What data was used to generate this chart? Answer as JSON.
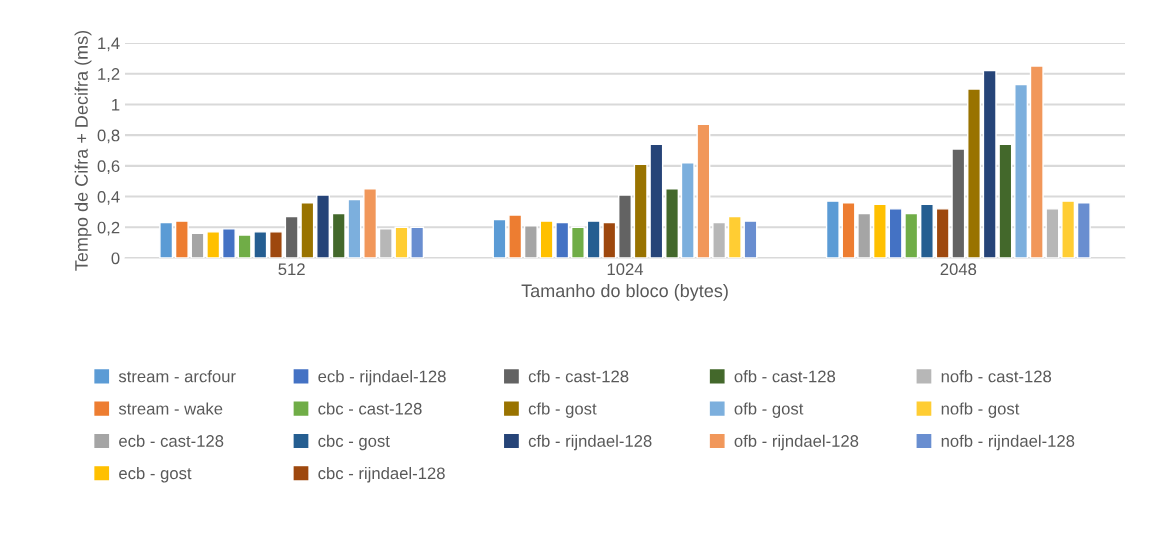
{
  "chart_data": {
    "type": "bar",
    "xlabel": "Tamanho do bloco (bytes)",
    "ylabel": "Tempo de Cifra + Decifra (ms)",
    "categories": [
      "512",
      "1024",
      "2048"
    ],
    "series": [
      {
        "name": "stream - arcfour",
        "color": "#5b9bd5",
        "values": [
          0.23,
          0.25,
          0.37
        ]
      },
      {
        "name": "stream - wake",
        "color": "#ed7d31",
        "values": [
          0.24,
          0.28,
          0.36
        ]
      },
      {
        "name": "ecb - cast-128",
        "color": "#a5a5a5",
        "values": [
          0.16,
          0.21,
          0.29
        ]
      },
      {
        "name": "ecb - gost",
        "color": "#ffc000",
        "values": [
          0.17,
          0.24,
          0.35
        ]
      },
      {
        "name": "ecb - rijndael-128",
        "color": "#4472c4",
        "values": [
          0.19,
          0.23,
          0.32
        ]
      },
      {
        "name": "cbc - cast-128",
        "color": "#70ad47",
        "values": [
          0.15,
          0.2,
          0.29
        ]
      },
      {
        "name": "cbc - gost",
        "color": "#255e91",
        "values": [
          0.17,
          0.24,
          0.35
        ]
      },
      {
        "name": "cbc - rijndael-128",
        "color": "#9e480e",
        "values": [
          0.17,
          0.23,
          0.32
        ]
      },
      {
        "name": "cfb - cast-128",
        "color": "#636363",
        "values": [
          0.27,
          0.41,
          0.71
        ]
      },
      {
        "name": "cfb - gost",
        "color": "#997300",
        "values": [
          0.36,
          0.61,
          1.1
        ]
      },
      {
        "name": "cfb - rijndael-128",
        "color": "#264478",
        "values": [
          0.41,
          0.74,
          1.22
        ]
      },
      {
        "name": "ofb - cast-128",
        "color": "#43682b",
        "values": [
          0.29,
          0.45,
          0.74
        ]
      },
      {
        "name": "ofb - gost",
        "color": "#7cafdd",
        "values": [
          0.38,
          0.62,
          1.13
        ]
      },
      {
        "name": "ofb - rijndael-128",
        "color": "#f1975a",
        "values": [
          0.45,
          0.87,
          1.25
        ]
      },
      {
        "name": "nofb - cast-128",
        "color": "#b7b7b7",
        "values": [
          0.19,
          0.23,
          0.32
        ]
      },
      {
        "name": "nofb - gost",
        "color": "#ffcd33",
        "values": [
          0.2,
          0.27,
          0.37
        ]
      },
      {
        "name": "nofb - rijndael-128",
        "color": "#698ed0",
        "values": [
          0.2,
          0.24,
          0.36
        ]
      }
    ],
    "ylim": [
      0,
      1.4
    ],
    "yticks": [
      0,
      {
        "value": 0.2,
        "label": "0,2"
      },
      {
        "value": 0.4,
        "label": "0,4"
      },
      {
        "value": 0.6,
        "label": "0,6"
      },
      {
        "value": 0.8,
        "label": "0,8"
      },
      1,
      {
        "value": 1.2,
        "label": "1,2"
      },
      {
        "value": 1.4,
        "label": "1,4"
      }
    ],
    "grid": "y",
    "legend": "bottom"
  }
}
